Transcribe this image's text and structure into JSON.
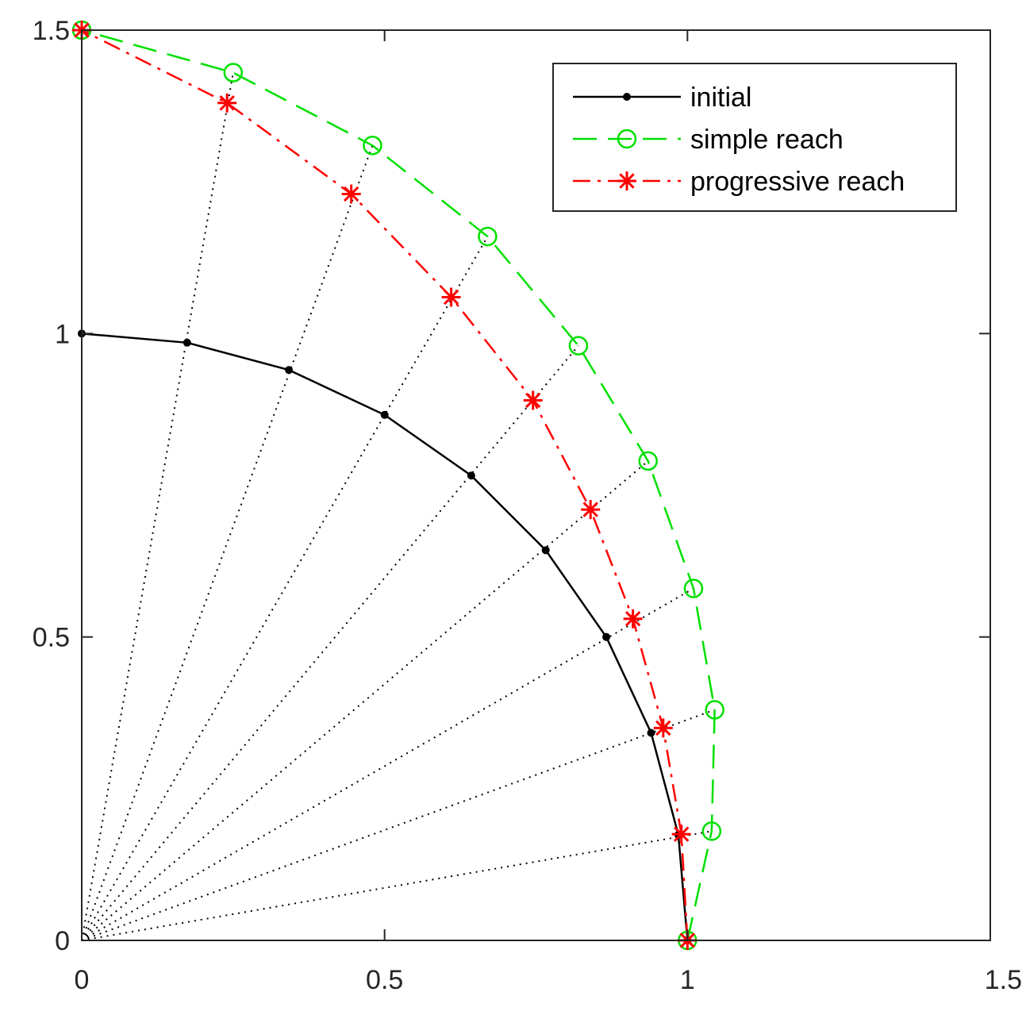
{
  "chart_data": {
    "type": "line",
    "title": "",
    "xlabel": "",
    "ylabel": "",
    "xlim": [
      0,
      1.5
    ],
    "ylim": [
      0,
      1.5
    ],
    "grid": false,
    "legend_position": "top-right",
    "x_ticks": [
      0,
      0.5,
      1,
      1.5
    ],
    "x_tick_labels": [
      "0",
      "0.5",
      "1",
      "1.5"
    ],
    "y_ticks": [
      0,
      0.5,
      1,
      1.5
    ],
    "y_tick_labels": [
      "0",
      "0.5",
      "1",
      "1.5"
    ],
    "series": [
      {
        "name": "initial",
        "color": "#000000",
        "line_style": "solid",
        "marker": "dot",
        "x": [
          1.0,
          0.985,
          0.94,
          0.866,
          0.766,
          0.643,
          0.5,
          0.342,
          0.174,
          0.0
        ],
        "y": [
          0.0,
          0.174,
          0.342,
          0.5,
          0.643,
          0.766,
          0.866,
          0.94,
          0.985,
          1.0
        ]
      },
      {
        "name": "simple reach",
        "color": "#00e000",
        "line_style": "dashed",
        "marker": "circle",
        "x": [
          1.0,
          1.04,
          1.045,
          1.01,
          0.935,
          0.82,
          0.67,
          0.48,
          0.25,
          0.0
        ],
        "y": [
          0.0,
          0.18,
          0.38,
          0.58,
          0.79,
          0.98,
          1.16,
          1.31,
          1.43,
          1.5
        ]
      },
      {
        "name": "progressive reach",
        "color": "#ff0000",
        "line_style": "dashdot",
        "marker": "asterisk",
        "x": [
          1.0,
          0.99,
          0.96,
          0.91,
          0.84,
          0.745,
          0.61,
          0.445,
          0.24,
          0.0
        ],
        "y": [
          0.0,
          0.175,
          0.35,
          0.53,
          0.71,
          0.89,
          1.06,
          1.23,
          1.38,
          1.5
        ]
      }
    ]
  }
}
